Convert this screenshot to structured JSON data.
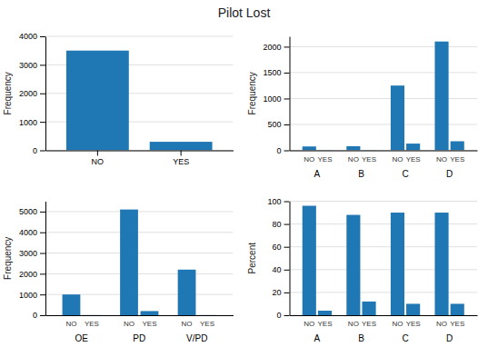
{
  "title": "Pilot Lost",
  "chart_data": [
    {
      "type": "bar",
      "categories": [
        "NO",
        "YES"
      ],
      "values": [
        3500,
        300
      ],
      "ylabel": "Frequency",
      "ylim": [
        0,
        4000
      ],
      "yticks": [
        0,
        1000,
        2000,
        3000,
        4000
      ],
      "grid": true
    },
    {
      "type": "bar",
      "categories": [
        "A",
        "B",
        "C",
        "D"
      ],
      "series": [
        {
          "name": "NO",
          "values": [
            75,
            80,
            1250,
            2100
          ]
        },
        {
          "name": "YES",
          "values": [
            5,
            5,
            130,
            175
          ]
        }
      ],
      "ylabel": "Frequency",
      "ylim": [
        0,
        2200
      ],
      "yticks": [
        0,
        500,
        1000,
        1500,
        2000
      ],
      "grid": true
    },
    {
      "type": "bar",
      "categories": [
        "OE",
        "PD",
        "V/PD"
      ],
      "series": [
        {
          "name": "NO",
          "values": [
            1000,
            5100,
            2200
          ]
        },
        {
          "name": "YES",
          "values": [
            5,
            200,
            5
          ]
        }
      ],
      "ylabel": "Frequency",
      "ylim": [
        0,
        5500
      ],
      "yticks": [
        0,
        1000,
        2000,
        3000,
        4000,
        5000
      ],
      "grid": true
    },
    {
      "type": "bar",
      "categories": [
        "A",
        "B",
        "C",
        "D"
      ],
      "series": [
        {
          "name": "NO",
          "values": [
            96,
            88,
            90,
            90
          ]
        },
        {
          "name": "YES",
          "values": [
            4,
            12,
            10,
            10
          ]
        }
      ],
      "ylabel": "Percent",
      "ylim": [
        0,
        100
      ],
      "yticks": [
        0,
        20,
        40,
        60,
        80,
        100
      ],
      "grid": true
    }
  ]
}
